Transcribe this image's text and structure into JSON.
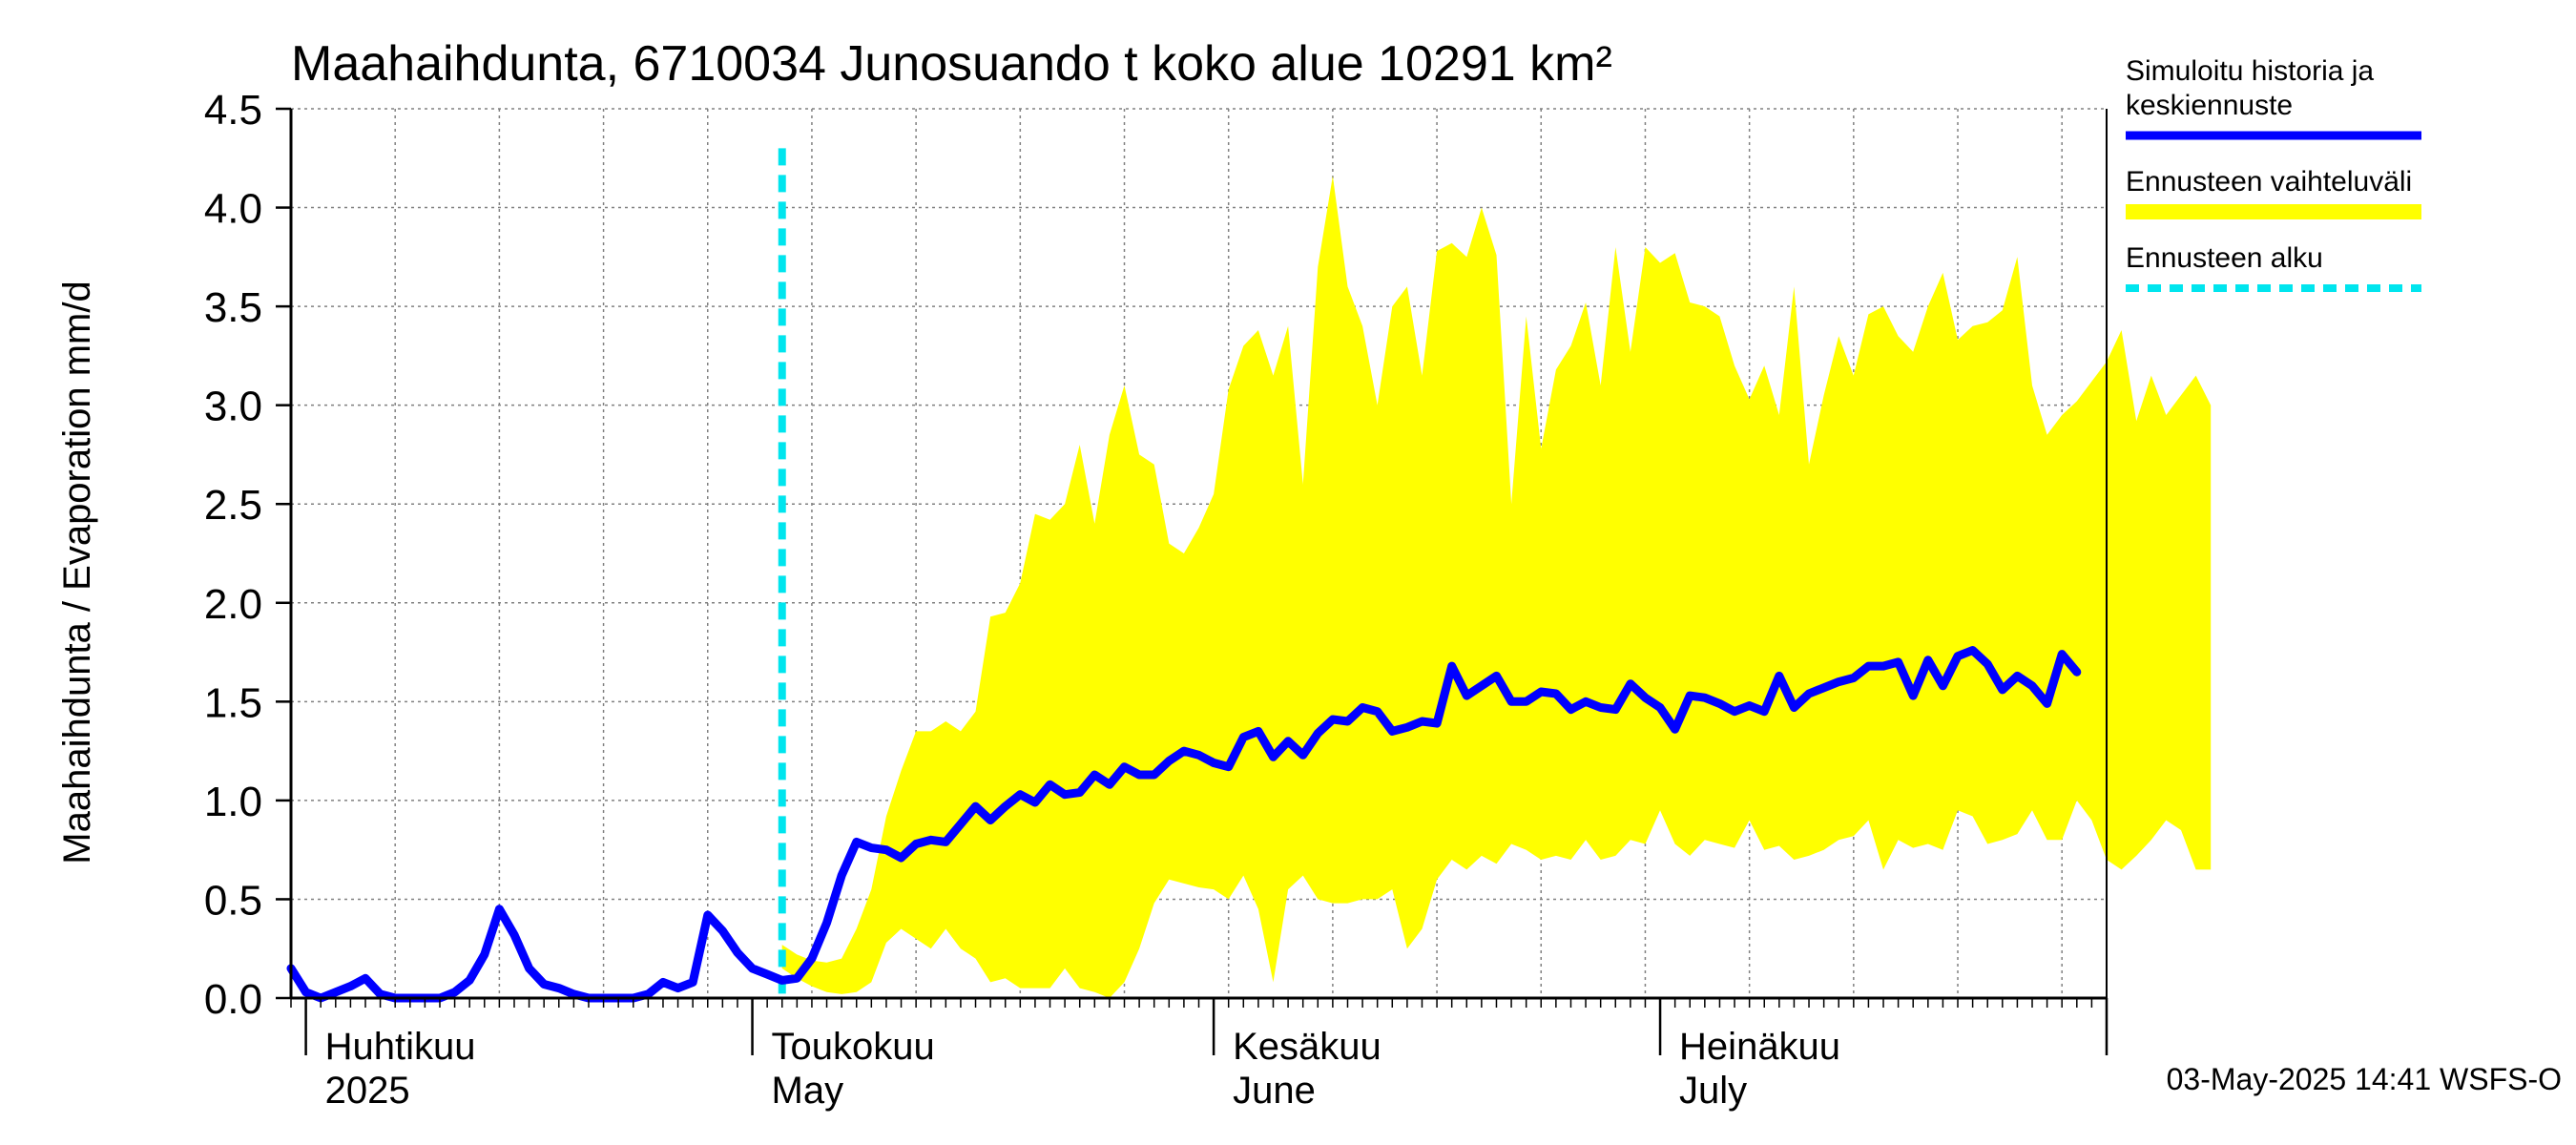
{
  "chart_data": {
    "type": "area",
    "title": "Maahaihdunta, 6710034 Junosuando t koko alue 10291 km²",
    "ylabel": "Maahaihdunta / Evaporation   mm/d",
    "ylim": [
      0,
      4.5
    ],
    "yticks": [
      "0.0",
      "0.5",
      "1.0",
      "1.5",
      "2.0",
      "2.5",
      "3.0",
      "3.5",
      "4.0",
      "4.5"
    ],
    "x_start": "2025-03-31",
    "x_end": "2025-07-31",
    "grid": true,
    "months": [
      {
        "fi": "Huhtikuu",
        "en": "2025",
        "start": "2025-04-01"
      },
      {
        "fi": "Toukokuu",
        "en": "May",
        "start": "2025-05-01"
      },
      {
        "fi": "Kesäkuu",
        "en": "June",
        "start": "2025-06-01"
      },
      {
        "fi": "Heinäkuu",
        "en": "July",
        "start": "2025-07-01"
      }
    ],
    "forecast_start": "2025-05-03",
    "colors": {
      "history": "#0000ff",
      "band": "#ffff00",
      "forecast_start": "#00e5ee",
      "grid": "#808080"
    },
    "series": [
      {
        "name": "Simuloitu historia ja keskiennuste",
        "type": "line",
        "start": "2025-03-31",
        "values": [
          0.15,
          0.03,
          0.0,
          0.03,
          0.06,
          0.1,
          0.02,
          0.0,
          0.0,
          0.0,
          0.0,
          0.03,
          0.09,
          0.22,
          0.45,
          0.32,
          0.15,
          0.07,
          0.05,
          0.02,
          0.0,
          0.0,
          0.0,
          0.0,
          0.02,
          0.08,
          0.05,
          0.08,
          0.42,
          0.34,
          0.23,
          0.15,
          0.12,
          0.09,
          0.1,
          0.2,
          0.38,
          0.62,
          0.79,
          0.76,
          0.75,
          0.71,
          0.78,
          0.8,
          0.79,
          0.88,
          0.97,
          0.9,
          0.97,
          1.03,
          0.99,
          1.08,
          1.03,
          1.04,
          1.13,
          1.08,
          1.17,
          1.13,
          1.13,
          1.2,
          1.25,
          1.23,
          1.19,
          1.17,
          1.32,
          1.35,
          1.22,
          1.3,
          1.23,
          1.34,
          1.41,
          1.4,
          1.47,
          1.45,
          1.35,
          1.37,
          1.4,
          1.39,
          1.68,
          1.53,
          1.58,
          1.63,
          1.5,
          1.5,
          1.55,
          1.54,
          1.46,
          1.5,
          1.47,
          1.46,
          1.59,
          1.52,
          1.47,
          1.36,
          1.53,
          1.52,
          1.49,
          1.45,
          1.48,
          1.45,
          1.63,
          1.47,
          1.54,
          1.57,
          1.6,
          1.62,
          1.68,
          1.68,
          1.7,
          1.53,
          1.71,
          1.58,
          1.73,
          1.76,
          1.69,
          1.56,
          1.63,
          1.58,
          1.49,
          1.74,
          1.65
        ]
      },
      {
        "name": "Ennusteen vaihteluväli",
        "type": "band",
        "start": "2025-05-03",
        "upper": [
          0.27,
          0.22,
          0.19,
          0.18,
          0.2,
          0.35,
          0.55,
          0.92,
          1.15,
          1.35,
          1.35,
          1.4,
          1.35,
          1.45,
          1.93,
          1.95,
          2.1,
          2.45,
          2.42,
          2.5,
          2.8,
          2.4,
          2.85,
          3.1,
          2.75,
          2.7,
          2.3,
          2.25,
          2.38,
          2.55,
          3.08,
          3.3,
          3.38,
          3.15,
          3.4,
          2.6,
          3.7,
          4.16,
          3.6,
          3.4,
          3.0,
          3.5,
          3.6,
          3.15,
          3.78,
          3.82,
          3.75,
          4.0,
          3.76,
          2.5,
          3.45,
          2.78,
          3.18,
          3.3,
          3.52,
          3.1,
          3.8,
          3.27,
          3.8,
          3.72,
          3.77,
          3.52,
          3.5,
          3.45,
          3.2,
          3.03,
          3.2,
          2.95,
          3.6,
          2.7,
          3.05,
          3.35,
          3.15,
          3.46,
          3.5,
          3.35,
          3.27,
          3.5,
          3.67,
          3.33,
          3.4,
          3.42,
          3.48,
          3.75,
          3.1,
          2.85,
          2.95,
          3.02,
          3.12,
          3.22,
          3.38,
          2.92,
          3.15,
          2.95,
          3.05,
          3.15,
          3.0
        ],
        "lower": [
          0.15,
          0.1,
          0.06,
          0.03,
          0.02,
          0.03,
          0.08,
          0.28,
          0.35,
          0.3,
          0.25,
          0.35,
          0.25,
          0.2,
          0.08,
          0.1,
          0.05,
          0.05,
          0.05,
          0.15,
          0.05,
          0.03,
          0.0,
          0.08,
          0.25,
          0.48,
          0.6,
          0.58,
          0.56,
          0.55,
          0.5,
          0.62,
          0.45,
          0.08,
          0.55,
          0.62,
          0.5,
          0.48,
          0.48,
          0.5,
          0.5,
          0.55,
          0.25,
          0.35,
          0.6,
          0.7,
          0.65,
          0.72,
          0.68,
          0.78,
          0.75,
          0.7,
          0.72,
          0.7,
          0.8,
          0.7,
          0.72,
          0.8,
          0.78,
          0.95,
          0.78,
          0.72,
          0.8,
          0.78,
          0.76,
          0.9,
          0.75,
          0.77,
          0.7,
          0.72,
          0.75,
          0.8,
          0.82,
          0.9,
          0.65,
          0.8,
          0.76,
          0.78,
          0.75,
          0.95,
          0.92,
          0.78,
          0.8,
          0.83,
          0.95,
          0.8,
          0.8,
          1.0,
          0.9,
          0.7,
          0.65,
          0.72,
          0.8,
          0.9,
          0.85,
          0.65,
          0.65
        ]
      }
    ],
    "legend": [
      {
        "label_lines": [
          "Simuloitu historia ja",
          "keskiennuste"
        ],
        "style": "line",
        "color": "#0000ff"
      },
      {
        "label_lines": [
          "Ennusteen vaihteluväli"
        ],
        "style": "band",
        "color": "#ffff00"
      },
      {
        "label_lines": [
          "Ennusteen alku"
        ],
        "style": "dashed",
        "color": "#00e5ee"
      }
    ],
    "legend_position": "right"
  },
  "footer": "03-May-2025 14:41 WSFS-O"
}
